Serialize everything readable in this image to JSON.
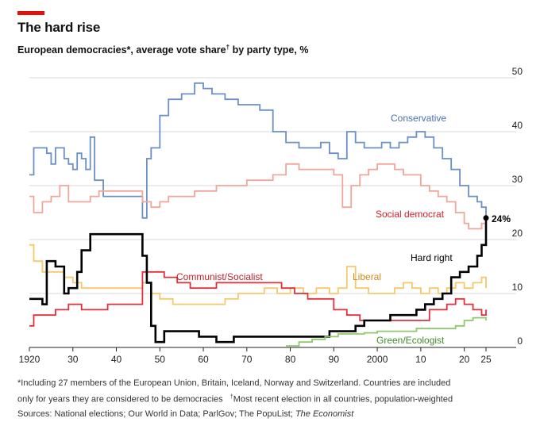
{
  "header": {
    "title": "The hard rise",
    "subtitle": "European democracies*, average vote share",
    "subtitle_dagger": "†",
    "subtitle_tail": " by party type, %"
  },
  "footnotes": {
    "line1": "*Including 27 members of the European Union, Britain, Iceland, Norway and Switzerland. Countries are included",
    "line2a": "only for years they are considered to be democracies",
    "line2_dagger": "†",
    "line2b": "Most recent election in all countries, population-weighted",
    "line3a": "Sources: National elections; Our World in Data; ParlGov; The PopuList; ",
    "line3b": "The Economist"
  },
  "chart_data": {
    "type": "line",
    "xlim": [
      1920,
      2025
    ],
    "ylim": [
      0,
      50
    ],
    "x_tick_labels": [
      "1920",
      "30",
      "40",
      "50",
      "60",
      "70",
      "80",
      "90",
      "2000",
      "10",
      "20",
      "25"
    ],
    "x_tick_values": [
      1920,
      1930,
      1940,
      1950,
      1960,
      1970,
      1980,
      1990,
      2000,
      2010,
      2020,
      2025
    ],
    "y_tick_labels": [
      "0",
      "10",
      "20",
      "30",
      "40",
      "50"
    ],
    "y_tick_values": [
      0,
      10,
      20,
      30,
      40,
      50
    ],
    "grid": true,
    "end_annotation": "24%",
    "series": [
      {
        "name": "Conservative",
        "color": "#6b8fc7",
        "points": [
          [
            1920,
            32
          ],
          [
            1921,
            37
          ],
          [
            1924,
            36
          ],
          [
            1925,
            34
          ],
          [
            1926,
            37
          ],
          [
            1928,
            35
          ],
          [
            1929,
            34
          ],
          [
            1930,
            33
          ],
          [
            1931,
            36
          ],
          [
            1932,
            35
          ],
          [
            1933,
            33
          ],
          [
            1934,
            39
          ],
          [
            1935,
            31
          ],
          [
            1937,
            28
          ],
          [
            1940,
            28
          ],
          [
            1945,
            28
          ],
          [
            1946,
            24
          ],
          [
            1947,
            35
          ],
          [
            1948,
            37
          ],
          [
            1950,
            43
          ],
          [
            1952,
            46
          ],
          [
            1955,
            47
          ],
          [
            1958,
            49
          ],
          [
            1960,
            48
          ],
          [
            1962,
            47
          ],
          [
            1965,
            46
          ],
          [
            1968,
            45
          ],
          [
            1970,
            45
          ],
          [
            1973,
            44
          ],
          [
            1976,
            40
          ],
          [
            1979,
            38
          ],
          [
            1982,
            37
          ],
          [
            1985,
            37
          ],
          [
            1987,
            38
          ],
          [
            1989,
            36
          ],
          [
            1991,
            35
          ],
          [
            1993,
            40
          ],
          [
            1995,
            38
          ],
          [
            1997,
            37
          ],
          [
            1999,
            37
          ],
          [
            2001,
            38
          ],
          [
            2003,
            37
          ],
          [
            2005,
            38
          ],
          [
            2007,
            39
          ],
          [
            2009,
            40
          ],
          [
            2011,
            39
          ],
          [
            2013,
            37
          ],
          [
            2015,
            35
          ],
          [
            2017,
            33
          ],
          [
            2019,
            30
          ],
          [
            2021,
            28
          ],
          [
            2023,
            27
          ],
          [
            2024,
            26
          ],
          [
            2025,
            24
          ]
        ]
      },
      {
        "name": "Social democrat",
        "color": "#f0a69a",
        "points": [
          [
            1920,
            28
          ],
          [
            1921,
            25
          ],
          [
            1923,
            27
          ],
          [
            1925,
            28
          ],
          [
            1927,
            30
          ],
          [
            1929,
            27
          ],
          [
            1931,
            27
          ],
          [
            1934,
            28
          ],
          [
            1936,
            29
          ],
          [
            1940,
            29
          ],
          [
            1945,
            29
          ],
          [
            1946,
            27
          ],
          [
            1948,
            26
          ],
          [
            1950,
            27
          ],
          [
            1952,
            28
          ],
          [
            1955,
            28
          ],
          [
            1958,
            29
          ],
          [
            1960,
            29
          ],
          [
            1963,
            30
          ],
          [
            1966,
            30
          ],
          [
            1970,
            31
          ],
          [
            1973,
            31
          ],
          [
            1976,
            32
          ],
          [
            1979,
            34
          ],
          [
            1982,
            33
          ],
          [
            1985,
            33
          ],
          [
            1988,
            33
          ],
          [
            1990,
            32
          ],
          [
            1992,
            26
          ],
          [
            1994,
            30
          ],
          [
            1996,
            32
          ],
          [
            1998,
            33
          ],
          [
            2000,
            34
          ],
          [
            2002,
            34
          ],
          [
            2004,
            33
          ],
          [
            2006,
            32
          ],
          [
            2008,
            32
          ],
          [
            2010,
            30
          ],
          [
            2012,
            29
          ],
          [
            2014,
            28
          ],
          [
            2016,
            27
          ],
          [
            2018,
            25
          ],
          [
            2020,
            23
          ],
          [
            2021,
            22
          ],
          [
            2023,
            22
          ],
          [
            2024,
            23
          ],
          [
            2025,
            24
          ]
        ]
      },
      {
        "name": "Liberal",
        "color": "#f5c96a",
        "points": [
          [
            1920,
            19
          ],
          [
            1921,
            16
          ],
          [
            1923,
            14
          ],
          [
            1926,
            14
          ],
          [
            1928,
            13
          ],
          [
            1930,
            12
          ],
          [
            1932,
            11
          ],
          [
            1934,
            11
          ],
          [
            1937,
            11
          ],
          [
            1940,
            11
          ],
          [
            1944,
            11
          ],
          [
            1946,
            12
          ],
          [
            1948,
            10
          ],
          [
            1950,
            9
          ],
          [
            1953,
            8
          ],
          [
            1956,
            8
          ],
          [
            1959,
            8
          ],
          [
            1962,
            8
          ],
          [
            1965,
            9
          ],
          [
            1968,
            10
          ],
          [
            1971,
            10
          ],
          [
            1974,
            11
          ],
          [
            1977,
            10
          ],
          [
            1980,
            11
          ],
          [
            1983,
            10
          ],
          [
            1986,
            11
          ],
          [
            1989,
            10
          ],
          [
            1991,
            11
          ],
          [
            1993,
            15
          ],
          [
            1995,
            11
          ],
          [
            1998,
            10
          ],
          [
            2001,
            10
          ],
          [
            2004,
            11
          ],
          [
            2006,
            12
          ],
          [
            2008,
            11
          ],
          [
            2010,
            10
          ],
          [
            2012,
            11
          ],
          [
            2014,
            10
          ],
          [
            2016,
            11
          ],
          [
            2018,
            12
          ],
          [
            2020,
            11
          ],
          [
            2022,
            12
          ],
          [
            2024,
            13
          ],
          [
            2025,
            11
          ]
        ]
      },
      {
        "name": "Communist/Socialist",
        "color": "#e0303a",
        "points": [
          [
            1920,
            4
          ],
          [
            1921,
            6
          ],
          [
            1923,
            6
          ],
          [
            1926,
            7
          ],
          [
            1929,
            8
          ],
          [
            1932,
            7
          ],
          [
            1935,
            7
          ],
          [
            1938,
            8
          ],
          [
            1941,
            8
          ],
          [
            1945,
            8
          ],
          [
            1946,
            14
          ],
          [
            1948,
            14
          ],
          [
            1951,
            13
          ],
          [
            1954,
            12
          ],
          [
            1957,
            11
          ],
          [
            1960,
            11
          ],
          [
            1963,
            12
          ],
          [
            1966,
            12
          ],
          [
            1969,
            12
          ],
          [
            1972,
            12
          ],
          [
            1975,
            12
          ],
          [
            1978,
            11
          ],
          [
            1981,
            10
          ],
          [
            1984,
            9
          ],
          [
            1987,
            9
          ],
          [
            1990,
            7
          ],
          [
            1993,
            6
          ],
          [
            1996,
            5
          ],
          [
            1999,
            5
          ],
          [
            2002,
            5
          ],
          [
            2005,
            5
          ],
          [
            2008,
            5
          ],
          [
            2010,
            5
          ],
          [
            2012,
            7
          ],
          [
            2014,
            7
          ],
          [
            2016,
            8
          ],
          [
            2018,
            9
          ],
          [
            2020,
            8
          ],
          [
            2022,
            7
          ],
          [
            2024,
            6
          ],
          [
            2025,
            7
          ]
        ]
      },
      {
        "name": "Hard right",
        "color": "#000000",
        "points": [
          [
            1920,
            9
          ],
          [
            1921,
            9
          ],
          [
            1923,
            8
          ],
          [
            1924,
            16
          ],
          [
            1926,
            15
          ],
          [
            1928,
            10
          ],
          [
            1929,
            11
          ],
          [
            1931,
            14
          ],
          [
            1932,
            18
          ],
          [
            1934,
            21
          ],
          [
            1936,
            21
          ],
          [
            1941,
            21
          ],
          [
            1945,
            21
          ],
          [
            1946,
            17
          ],
          [
            1947,
            12
          ],
          [
            1948,
            4
          ],
          [
            1949,
            1
          ],
          [
            1951,
            3
          ],
          [
            1955,
            3
          ],
          [
            1959,
            2
          ],
          [
            1963,
            1
          ],
          [
            1967,
            2
          ],
          [
            1971,
            2
          ],
          [
            1975,
            2
          ],
          [
            1979,
            2
          ],
          [
            1983,
            2
          ],
          [
            1987,
            2
          ],
          [
            1989,
            3
          ],
          [
            1991,
            3
          ],
          [
            1993,
            3
          ],
          [
            1995,
            4
          ],
          [
            1997,
            5
          ],
          [
            1999,
            5
          ],
          [
            2001,
            5
          ],
          [
            2003,
            6
          ],
          [
            2005,
            6
          ],
          [
            2007,
            6
          ],
          [
            2009,
            7
          ],
          [
            2011,
            8
          ],
          [
            2013,
            9
          ],
          [
            2015,
            10
          ],
          [
            2017,
            13
          ],
          [
            2019,
            14
          ],
          [
            2021,
            15
          ],
          [
            2023,
            17
          ],
          [
            2024,
            19
          ],
          [
            2025,
            24
          ]
        ]
      },
      {
        "name": "Green/Ecologist",
        "color": "#8cc96c",
        "points": [
          [
            1979,
            0.3
          ],
          [
            1982,
            1
          ],
          [
            1985,
            1.5
          ],
          [
            1988,
            2
          ],
          [
            1991,
            2.5
          ],
          [
            1994,
            2.5
          ],
          [
            1997,
            2.7
          ],
          [
            2000,
            3
          ],
          [
            2003,
            3
          ],
          [
            2006,
            3
          ],
          [
            2009,
            3.5
          ],
          [
            2012,
            3.5
          ],
          [
            2015,
            3.5
          ],
          [
            2018,
            4
          ],
          [
            2020,
            5
          ],
          [
            2022,
            5.5
          ],
          [
            2024,
            5.5
          ],
          [
            2025,
            5
          ]
        ]
      }
    ]
  }
}
